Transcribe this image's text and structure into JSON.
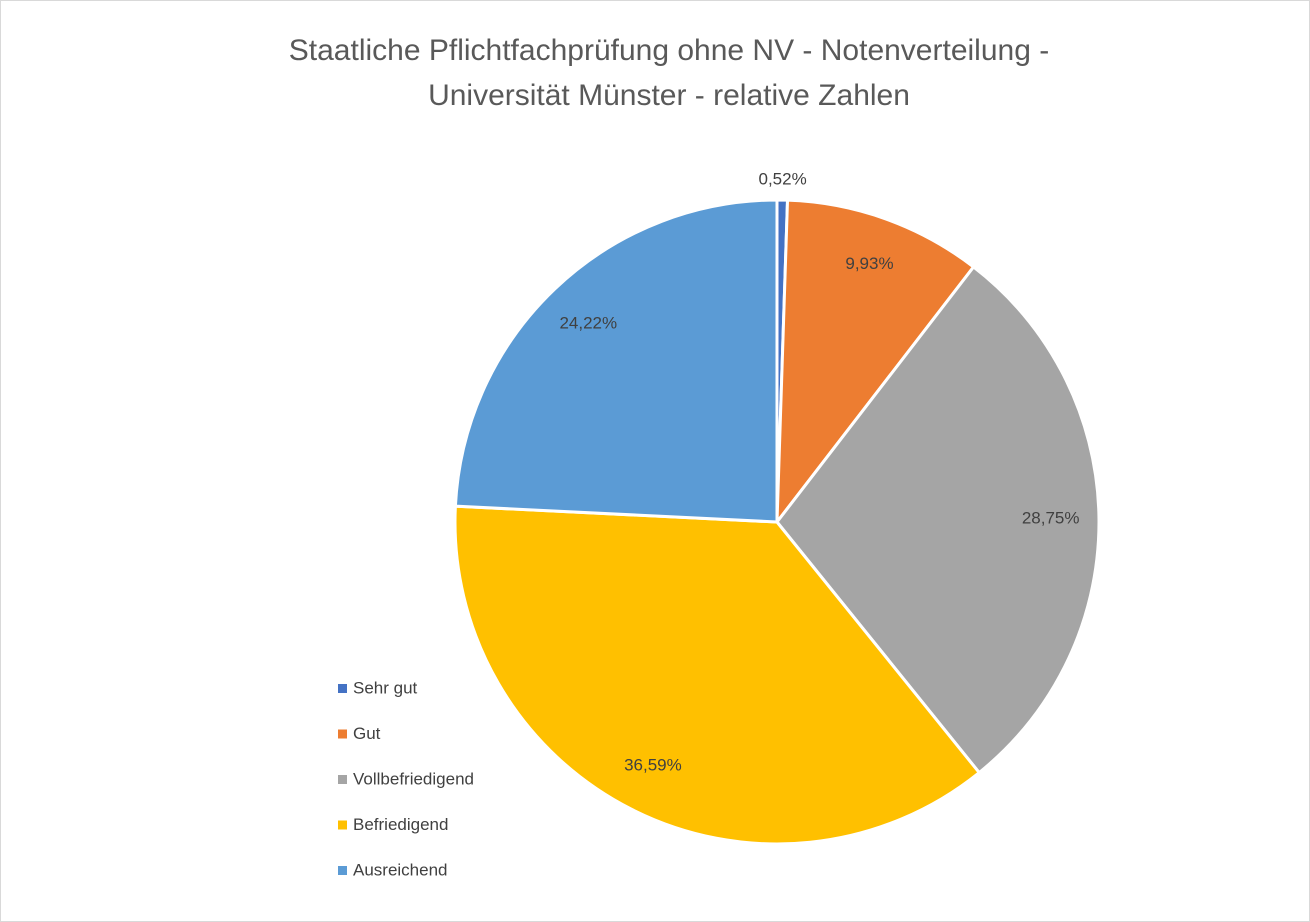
{
  "chart_data": {
    "type": "pie",
    "title": [
      "Staatliche Pflichtfachprüfung ohne NV - Notenverteilung -",
      "Universität Münster - relative Zahlen"
    ],
    "categories": [
      "Sehr gut",
      "Gut",
      "Vollbefriedigend",
      "Befriedigend",
      "Ausreichend"
    ],
    "values": [
      0.52,
      9.93,
      28.75,
      36.59,
      24.22
    ],
    "value_labels": [
      "0,52%",
      "9,93%",
      "28,75%",
      "36,59%",
      "24,22%"
    ],
    "colors": [
      "#4472c4",
      "#ed7d31",
      "#a5a5a5",
      "#ffc000",
      "#5b9bd5"
    ],
    "legend": "left"
  }
}
